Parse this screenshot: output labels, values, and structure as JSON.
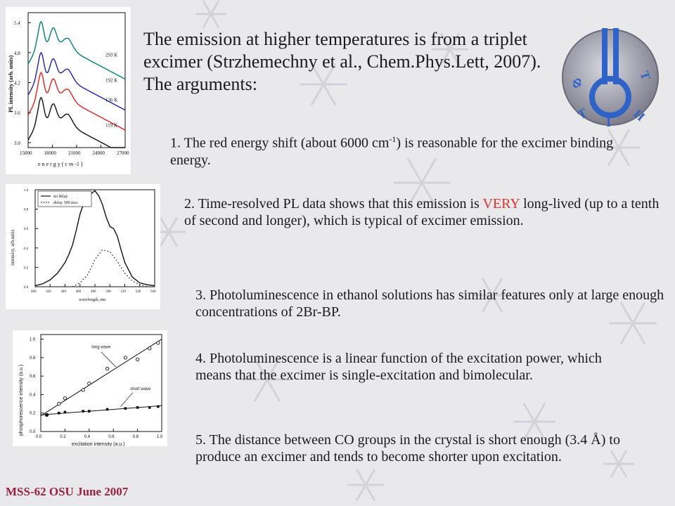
{
  "title": "The emission at higher temperatures is from a triplet excimer (Strzhemechny et al., Chem.Phys.Lett, 2007). The arguments:",
  "points": {
    "p1_before": "1. The red energy shift (about 6000 cm",
    "p1_sup": "-1",
    "p1_after": ") is reasonable for the excimer binding energy.",
    "p2_before": "2. Time-resolved PL data shows that this emission is ",
    "p2_emph": "VERY",
    "p2_after": " long-lived (up to a tenth of second and longer), which is typical of excimer emission.",
    "p3": "3. Photoluminescence in ethanol solutions has similar features only at large enough concentrations of 2Br-BP.",
    "p4": "4. Photoluminescence is a linear function of the excitation power, which means that the excimer is single-excitation and bimolecular.",
    "p5": "5. The distance between CO groups in the crystal is short enough (3.4 Å) to produce an excimer and tends to become shorter upon excitation."
  },
  "footer": "MSS-62 OSU June 2007",
  "logo": {
    "letters": [
      "Ф",
      "Т",
      "І",
      "Н",
      "Т"
    ]
  },
  "colors": {
    "emphasis": "#e53030",
    "footer": "#9a2040",
    "logo_blue": "#2f63c8",
    "logo_gray": "#8a8a98"
  },
  "chart_data": [
    {
      "type": "line",
      "xlabel": "e n e r g y   ( c m -1 )",
      "ylabel": "PL intensity (arb. units)",
      "x_ticks": [
        "15000",
        "18000",
        "21000",
        "24000",
        "27000"
      ],
      "y_ticks": [
        "3.0",
        "3.6",
        "4.2",
        "4.8",
        "5.4"
      ],
      "xlim": [
        15000,
        27000
      ],
      "ylim": [
        2.9,
        5.6
      ],
      "series": [
        {
          "name": "293 K",
          "color": "#008070",
          "offset": 4.95,
          "plateau": 0.12
        },
        {
          "name": "192 K",
          "color": "#2020b0",
          "offset": 4.45,
          "plateau": 0.0
        },
        {
          "name": "136 K",
          "color": "#e02020",
          "offset": 4.05,
          "plateau": 0.0
        },
        {
          "name": "119 K",
          "color": "#111111",
          "offset": 3.55,
          "plateau": 0.0
        }
      ]
    },
    {
      "type": "line",
      "xlabel": "wavelength, nm",
      "ylabel": "intensity, arb.units",
      "x_ticks": [
        "400",
        "420",
        "440",
        "460",
        "480",
        "500",
        "520",
        "540",
        "560"
      ],
      "y_ticks": [
        "0.0",
        "0.2",
        "0.4",
        "0.6",
        "0.8",
        "1.0"
      ],
      "xlim": [
        400,
        560
      ],
      "ylim": [
        0,
        1.0
      ],
      "series": [
        {
          "name": "no delay",
          "x": [
            400,
            410,
            420,
            430,
            440,
            445,
            450,
            455,
            460,
            465,
            470,
            475,
            480,
            485,
            490,
            495,
            500,
            505,
            510,
            515,
            520,
            530,
            540,
            550,
            560
          ],
          "y": [
            0.01,
            0.03,
            0.07,
            0.14,
            0.25,
            0.33,
            0.43,
            0.58,
            0.75,
            0.86,
            0.92,
            0.96,
            0.99,
            0.94,
            0.85,
            0.72,
            0.62,
            0.6,
            0.52,
            0.38,
            0.25,
            0.1,
            0.04,
            0.02,
            0.01
          ]
        },
        {
          "name": "delay 300 mcs",
          "x": [
            450,
            460,
            470,
            480,
            490,
            500,
            510,
            520,
            530,
            540,
            550
          ],
          "y": [
            0.0,
            0.04,
            0.12,
            0.28,
            0.38,
            0.36,
            0.26,
            0.14,
            0.06,
            0.02,
            0.0
          ]
        }
      ]
    },
    {
      "type": "scatter",
      "xlabel": "excitation intensity (a.u.)",
      "ylabel": "phosphorescence intensity (a.u.)",
      "x_ticks": [
        "0.0",
        "0.2",
        "0.4",
        "0.6",
        "0.8",
        "1.0"
      ],
      "y_ticks": [
        "0.0",
        "0.2",
        "0.4",
        "0.6",
        "0.8",
        "1.0"
      ],
      "xlim": [
        0,
        1.0
      ],
      "ylim": [
        0,
        1.05
      ],
      "annotations": [
        "long wave",
        "short wave"
      ],
      "series": [
        {
          "name": "long wave",
          "marker": "open-circle",
          "x": [
            0.05,
            0.15,
            0.2,
            0.35,
            0.4,
            0.55,
            0.7,
            0.8,
            0.9,
            0.97
          ],
          "y": [
            0.18,
            0.3,
            0.36,
            0.45,
            0.52,
            0.68,
            0.8,
            0.78,
            0.9,
            0.96
          ],
          "fit": [
            [
              0.0,
              0.17
            ],
            [
              1.0,
              1.0
            ]
          ]
        },
        {
          "name": "short wave",
          "marker": "filled-square",
          "x": [
            0.05,
            0.15,
            0.2,
            0.35,
            0.4,
            0.55,
            0.7,
            0.8,
            0.9,
            0.97
          ],
          "y": [
            0.18,
            0.2,
            0.21,
            0.22,
            0.22,
            0.24,
            0.25,
            0.26,
            0.26,
            0.27
          ],
          "fit": [
            [
              0.0,
              0.18
            ],
            [
              1.0,
              0.28
            ]
          ]
        }
      ]
    }
  ]
}
